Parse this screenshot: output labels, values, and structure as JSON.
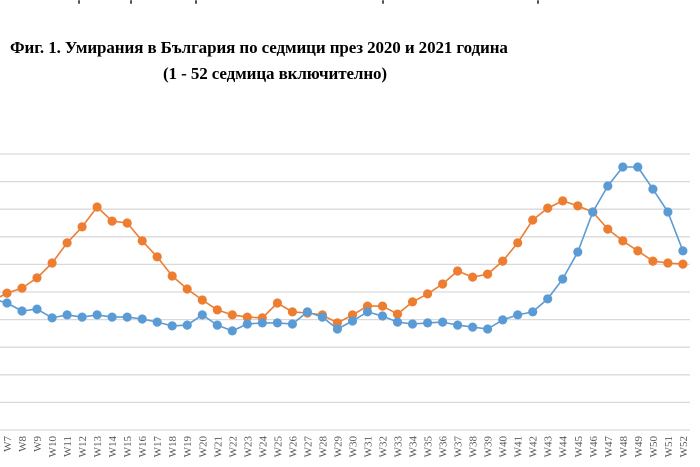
{
  "document": {
    "figure_title_line1": "Фиг. 1. Умирания в България по седмици през 2020 и 2021 година",
    "figure_title_line2": "(1 - 52 седмица включително)"
  },
  "chart_data": {
    "type": "line",
    "title": "Фиг. 1. Умирания в България по седмици през 2020 и 2021 година",
    "subtitle": "(1 - 52 седмица включително)",
    "xlabel": "",
    "ylabel": "",
    "y_units": "gridline units (y-axis tick labels not visible in crop; 0 = bottom axis, 10 = top gridline)",
    "ylim": [
      0,
      10
    ],
    "grid": true,
    "gridline_count": 11,
    "legend": null,
    "categories": [
      "W7",
      "W8",
      "W9",
      "W10",
      "W11",
      "W12",
      "W13",
      "W14",
      "W15",
      "W16",
      "W17",
      "W18",
      "W19",
      "W20",
      "W21",
      "W22",
      "W23",
      "W24",
      "W25",
      "W26",
      "W27",
      "W28",
      "W29",
      "W30",
      "W31",
      "W32",
      "W33",
      "W34",
      "W35",
      "W36",
      "W37",
      "W38",
      "W39",
      "W40",
      "W41",
      "W42",
      "W43",
      "W44",
      "W45",
      "W46",
      "W47",
      "W48",
      "W49",
      "W50",
      "W51",
      "W52"
    ],
    "series": [
      {
        "name": "orange series",
        "color": "#ED7D31",
        "lead_in_value": 4.67,
        "values": [
          4.96,
          5.14,
          5.51,
          6.05,
          6.78,
          7.36,
          8.08,
          7.57,
          7.5,
          6.85,
          6.27,
          5.58,
          5.11,
          4.71,
          4.35,
          4.17,
          4.09,
          4.06,
          4.6,
          4.28,
          4.24,
          4.17,
          3.88,
          4.17,
          4.49,
          4.49,
          4.2,
          4.64,
          4.93,
          5.29,
          5.76,
          5.54,
          5.65,
          6.12,
          6.78,
          7.61,
          8.04,
          8.3,
          8.12,
          7.9,
          7.28,
          6.85,
          6.49,
          6.12,
          6.05,
          6.01
        ]
      },
      {
        "name": "blue series",
        "color": "#5B9BD5",
        "lead_in_value": 4.76,
        "values": [
          4.6,
          4.31,
          4.38,
          4.06,
          4.17,
          4.09,
          4.17,
          4.09,
          4.09,
          4.02,
          3.91,
          3.77,
          3.8,
          4.17,
          3.8,
          3.59,
          3.84,
          3.88,
          3.88,
          3.84,
          4.28,
          4.09,
          3.66,
          3.95,
          4.28,
          4.13,
          3.91,
          3.84,
          3.88,
          3.91,
          3.8,
          3.73,
          3.66,
          3.99,
          4.17,
          4.28,
          4.75,
          5.47,
          6.45,
          7.9,
          8.84,
          9.53,
          9.53,
          8.73,
          7.9,
          6.49
        ]
      }
    ]
  },
  "style": {
    "gridline_color": "#d9d9d9",
    "axis_label_color": "#595959"
  }
}
